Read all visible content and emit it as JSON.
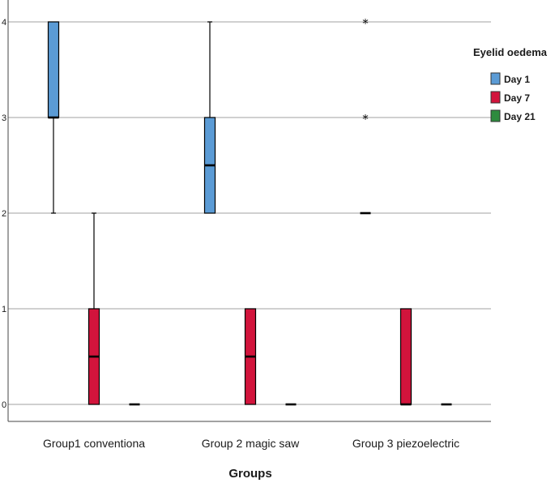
{
  "chart_data": {
    "type": "boxplot",
    "xlabel": "Groups",
    "ylabel": "",
    "ylim": [
      0,
      4
    ],
    "yticks": [
      "0",
      "1",
      "2",
      "3",
      "4"
    ],
    "grid": true,
    "legend_position": "right",
    "legend_title": "Eyelid oedema",
    "categories": [
      "Group1 conventiona",
      "Group 2 magic saw",
      "Group 3 piezoelectric"
    ],
    "series": [
      {
        "name": "Day 1",
        "color": "#5b9bd5",
        "boxes": [
          {
            "min": 2,
            "q1": 3,
            "median": 3,
            "q3": 4,
            "max": 4,
            "outliers": []
          },
          {
            "min": 2,
            "q1": 2,
            "median": 2.5,
            "q3": 3,
            "max": 4,
            "outliers": []
          },
          {
            "min": 2,
            "q1": 2,
            "median": 2,
            "q3": 2,
            "max": 2,
            "outliers": [
              3,
              4
            ]
          }
        ]
      },
      {
        "name": "Day 7",
        "color": "#d2143c",
        "boxes": [
          {
            "min": 0,
            "q1": 0,
            "median": 0.5,
            "q3": 1,
            "max": 2,
            "outliers": []
          },
          {
            "min": 0,
            "q1": 0,
            "median": 0.5,
            "q3": 1,
            "max": 1,
            "outliers": []
          },
          {
            "min": 0,
            "q1": 0,
            "median": 0,
            "q3": 1,
            "max": 1,
            "outliers": []
          }
        ]
      },
      {
        "name": "Day 21",
        "color": "#2e8b3e",
        "boxes": [
          {
            "min": 0,
            "q1": 0,
            "median": 0,
            "q3": 0,
            "max": 0,
            "outliers": []
          },
          {
            "min": 0,
            "q1": 0,
            "median": 0,
            "q3": 0,
            "max": 0,
            "outliers": []
          },
          {
            "min": 0,
            "q1": 0,
            "median": 0,
            "q3": 0,
            "max": 0,
            "outliers": []
          }
        ]
      }
    ]
  }
}
